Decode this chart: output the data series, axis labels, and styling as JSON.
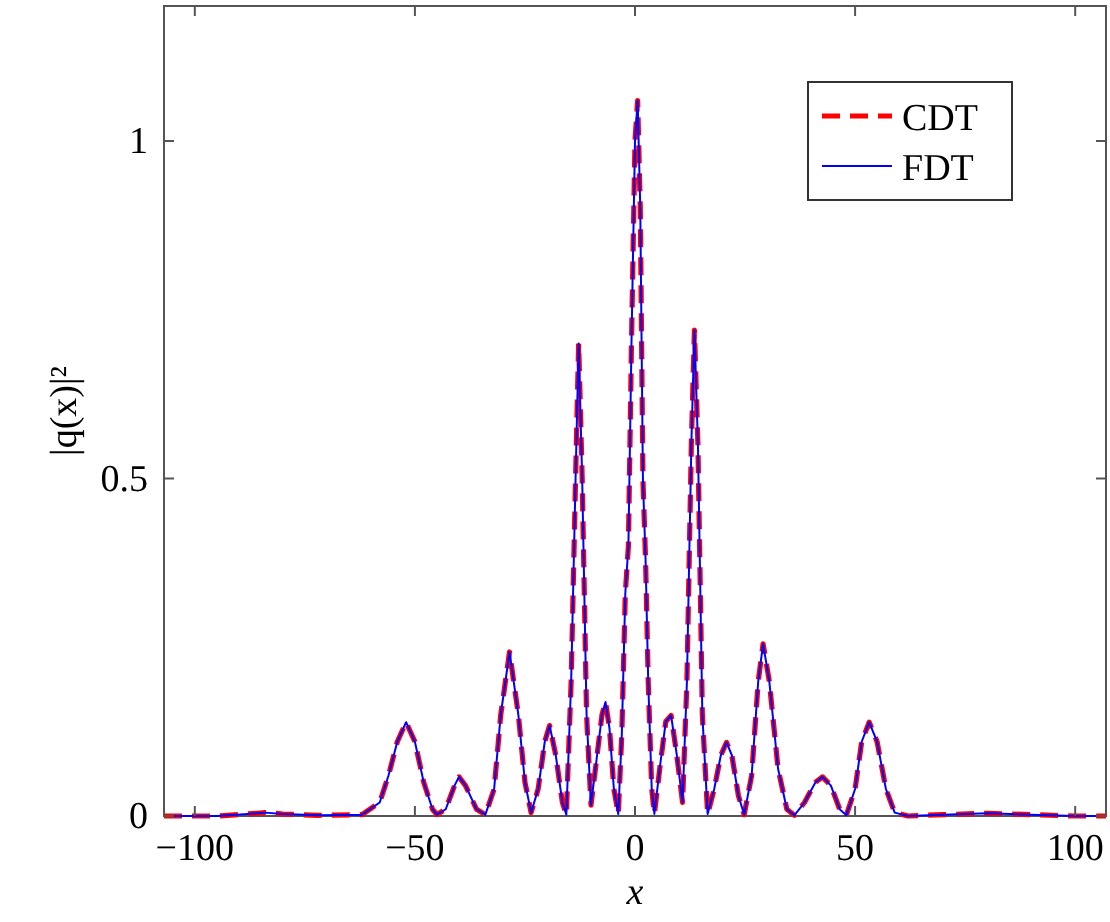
{
  "chart_data": {
    "type": "line",
    "xlabel": "x",
    "ylabel": "|q(x)|²",
    "x": [
      -107,
      -95,
      -88,
      -84,
      -80,
      -72,
      -62,
      -58,
      -56,
      -54,
      -52,
      -50,
      -48,
      -46,
      -45,
      -43,
      -41,
      -40,
      -38.5,
      -36,
      -34,
      -32,
      -30.5,
      -28.5,
      -26.5,
      -25,
      -23.6,
      -22,
      -20.5,
      -19.4,
      -18,
      -16.5,
      -15.6,
      -14.5,
      -13.5,
      -12.8,
      -12,
      -11,
      -10,
      -8.8,
      -7.5,
      -6.7,
      -5.8,
      -4.8,
      -3.8,
      -3,
      -2.2,
      -1.5,
      -0.8,
      0,
      0.6,
      1.2,
      1.8,
      2.4,
      3,
      3.8,
      4.4,
      5.8,
      7,
      8.2,
      9.5,
      10.8,
      11.8,
      12.8,
      13.5,
      14.3,
      15.3,
      16.5,
      18,
      19.5,
      20.8,
      22,
      23.5,
      24.8,
      26.5,
      28,
      29.1,
      30.5,
      32.5,
      34.5,
      36.2,
      38.5,
      41,
      42.6,
      44.5,
      46.5,
      48,
      50,
      51.5,
      53.2,
      55,
      57,
      59,
      62,
      70,
      80,
      90,
      100,
      107
    ],
    "series": [
      {
        "name": "CDT",
        "color": "#ff0000",
        "line_style": "dashed",
        "values": [
          0,
          0,
          0.003,
          0.005,
          0.003,
          0.001,
          0.002,
          0.02,
          0.06,
          0.11,
          0.139,
          0.11,
          0.05,
          0.01,
          0.002,
          0.01,
          0.045,
          0.058,
          0.045,
          0.01,
          0.002,
          0.04,
          0.15,
          0.243,
          0.15,
          0.05,
          0.005,
          0.04,
          0.11,
          0.134,
          0.09,
          0.02,
          0.002,
          0.2,
          0.5,
          0.7,
          0.5,
          0.15,
          0.016,
          0.08,
          0.15,
          0.169,
          0.13,
          0.04,
          0.003,
          0.12,
          0.33,
          0.4,
          0.7,
          1.0,
          1.06,
          0.9,
          0.5,
          0.38,
          0.2,
          0.04,
          0.003,
          0.08,
          0.14,
          0.149,
          0.09,
          0.02,
          0.2,
          0.55,
          0.72,
          0.55,
          0.15,
          0.003,
          0.04,
          0.09,
          0.109,
          0.09,
          0.03,
          0.002,
          0.06,
          0.2,
          0.255,
          0.2,
          0.07,
          0.01,
          0.001,
          0.02,
          0.05,
          0.058,
          0.045,
          0.01,
          0.001,
          0.04,
          0.11,
          0.139,
          0.11,
          0.04,
          0.005,
          0,
          0.002,
          0.004,
          0.002,
          0,
          0
        ]
      },
      {
        "name": "FDT",
        "color": "#0000ff",
        "line_style": "solid",
        "values": [
          0,
          0,
          0.003,
          0.005,
          0.003,
          0.001,
          0.002,
          0.02,
          0.06,
          0.11,
          0.139,
          0.11,
          0.05,
          0.01,
          0.002,
          0.01,
          0.045,
          0.058,
          0.045,
          0.01,
          0.002,
          0.04,
          0.15,
          0.243,
          0.15,
          0.05,
          0.005,
          0.04,
          0.11,
          0.134,
          0.09,
          0.02,
          0.002,
          0.2,
          0.5,
          0.7,
          0.5,
          0.15,
          0.016,
          0.08,
          0.15,
          0.169,
          0.13,
          0.04,
          0.003,
          0.12,
          0.33,
          0.4,
          0.7,
          1.0,
          1.06,
          0.9,
          0.5,
          0.38,
          0.2,
          0.04,
          0.003,
          0.08,
          0.14,
          0.149,
          0.09,
          0.02,
          0.2,
          0.55,
          0.72,
          0.55,
          0.15,
          0.003,
          0.04,
          0.09,
          0.109,
          0.09,
          0.03,
          0.002,
          0.06,
          0.2,
          0.255,
          0.2,
          0.07,
          0.01,
          0.001,
          0.02,
          0.05,
          0.058,
          0.045,
          0.01,
          0.001,
          0.04,
          0.11,
          0.139,
          0.11,
          0.04,
          0.005,
          0,
          0.002,
          0.004,
          0.002,
          0,
          0
        ]
      }
    ],
    "xlim": [
      -107,
      107
    ],
    "ylim": [
      0,
      1.2
    ],
    "xticks": [
      {
        "value": -100,
        "label": "−100"
      },
      {
        "value": -50,
        "label": "−50"
      },
      0,
      50,
      100
    ],
    "yticks": [
      0,
      0.5,
      1
    ],
    "grid": false,
    "legend": "top right"
  }
}
